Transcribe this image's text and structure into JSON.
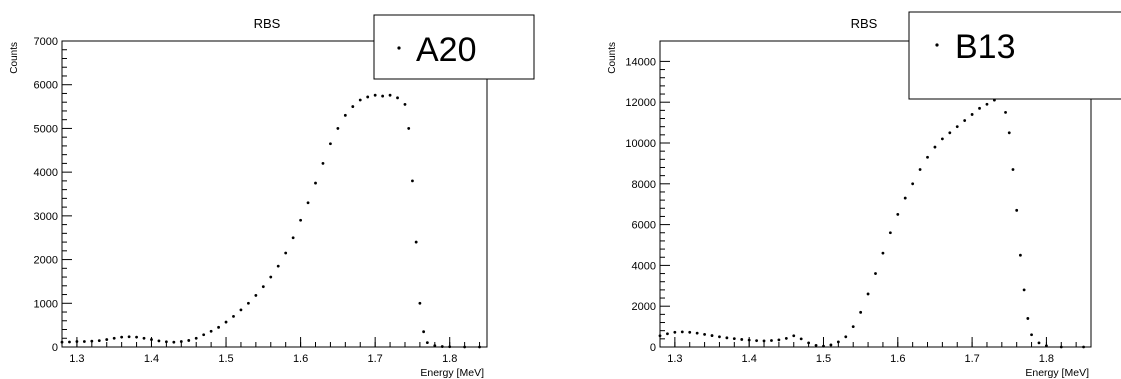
{
  "chart_data": [
    {
      "type": "scatter",
      "title": "RBS",
      "xlabel": "Energy [MeV]",
      "ylabel": "Counts",
      "xlim": [
        1.28,
        1.85
      ],
      "ylim": [
        0,
        7000
      ],
      "xticks": [
        1.3,
        1.4,
        1.5,
        1.6,
        1.7,
        1.8
      ],
      "yticks": [
        0,
        1000,
        2000,
        3000,
        4000,
        5000,
        6000,
        7000
      ],
      "grid": false,
      "legend_position": "top-right",
      "series": [
        {
          "name": "A20",
          "points": [
            [
              1.28,
              110
            ],
            [
              1.29,
              115
            ],
            [
              1.3,
              125
            ],
            [
              1.31,
              125
            ],
            [
              1.32,
              135
            ],
            [
              1.33,
              145
            ],
            [
              1.34,
              170
            ],
            [
              1.35,
              200
            ],
            [
              1.36,
              225
            ],
            [
              1.37,
              235
            ],
            [
              1.38,
              225
            ],
            [
              1.39,
              200
            ],
            [
              1.4,
              170
            ],
            [
              1.41,
              140
            ],
            [
              1.42,
              120
            ],
            [
              1.43,
              110
            ],
            [
              1.44,
              125
            ],
            [
              1.45,
              150
            ],
            [
              1.46,
              200
            ],
            [
              1.47,
              280
            ],
            [
              1.48,
              360
            ],
            [
              1.49,
              450
            ],
            [
              1.5,
              570
            ],
            [
              1.51,
              700
            ],
            [
              1.52,
              850
            ],
            [
              1.53,
              1000
            ],
            [
              1.54,
              1180
            ],
            [
              1.55,
              1380
            ],
            [
              1.56,
              1600
            ],
            [
              1.57,
              1850
            ],
            [
              1.58,
              2150
            ],
            [
              1.59,
              2500
            ],
            [
              1.6,
              2900
            ],
            [
              1.61,
              3300
            ],
            [
              1.62,
              3750
            ],
            [
              1.63,
              4200
            ],
            [
              1.64,
              4650
            ],
            [
              1.65,
              5000
            ],
            [
              1.66,
              5300
            ],
            [
              1.67,
              5500
            ],
            [
              1.68,
              5650
            ],
            [
              1.69,
              5720
            ],
            [
              1.7,
              5760
            ],
            [
              1.71,
              5740
            ],
            [
              1.72,
              5760
            ],
            [
              1.73,
              5700
            ],
            [
              1.74,
              5550
            ],
            [
              1.745,
              5000
            ],
            [
              1.75,
              3800
            ],
            [
              1.755,
              2400
            ],
            [
              1.76,
              1000
            ],
            [
              1.765,
              350
            ],
            [
              1.77,
              100
            ],
            [
              1.78,
              30
            ],
            [
              1.79,
              10
            ],
            [
              1.8,
              5
            ],
            [
              1.82,
              0
            ],
            [
              1.84,
              0
            ]
          ]
        }
      ]
    },
    {
      "type": "scatter",
      "title": "RBS",
      "xlabel": "Energy [MeV]",
      "ylabel": "Counts",
      "xlim": [
        1.28,
        1.86
      ],
      "ylim": [
        0,
        15000
      ],
      "xticks": [
        1.3,
        1.4,
        1.5,
        1.6,
        1.7,
        1.8
      ],
      "yticks": [
        0,
        2000,
        4000,
        6000,
        8000,
        10000,
        12000,
        14000
      ],
      "grid": false,
      "legend_position": "top-right",
      "series": [
        {
          "name": "B13",
          "points": [
            [
              1.28,
              550
            ],
            [
              1.29,
              650
            ],
            [
              1.3,
              720
            ],
            [
              1.31,
              740
            ],
            [
              1.32,
              720
            ],
            [
              1.33,
              680
            ],
            [
              1.34,
              620
            ],
            [
              1.35,
              560
            ],
            [
              1.36,
              500
            ],
            [
              1.37,
              450
            ],
            [
              1.38,
              410
            ],
            [
              1.39,
              370
            ],
            [
              1.4,
              340
            ],
            [
              1.41,
              310
            ],
            [
              1.42,
              300
            ],
            [
              1.43,
              320
            ],
            [
              1.44,
              350
            ],
            [
              1.45,
              420
            ],
            [
              1.46,
              550
            ],
            [
              1.47,
              400
            ],
            [
              1.48,
              200
            ],
            [
              1.49,
              80
            ],
            [
              1.5,
              40
            ],
            [
              1.51,
              100
            ],
            [
              1.52,
              250
            ],
            [
              1.53,
              500
            ],
            [
              1.54,
              1000
            ],
            [
              1.55,
              1700
            ],
            [
              1.56,
              2600
            ],
            [
              1.57,
              3600
            ],
            [
              1.58,
              4600
            ],
            [
              1.59,
              5600
            ],
            [
              1.6,
              6500
            ],
            [
              1.61,
              7300
            ],
            [
              1.62,
              8000
            ],
            [
              1.63,
              8700
            ],
            [
              1.64,
              9300
            ],
            [
              1.65,
              9800
            ],
            [
              1.66,
              10200
            ],
            [
              1.67,
              10500
            ],
            [
              1.68,
              10800
            ],
            [
              1.69,
              11100
            ],
            [
              1.7,
              11400
            ],
            [
              1.71,
              11700
            ],
            [
              1.72,
              11900
            ],
            [
              1.73,
              12100
            ],
            [
              1.74,
              12200
            ],
            [
              1.745,
              11500
            ],
            [
              1.75,
              10500
            ],
            [
              1.755,
              8700
            ],
            [
              1.76,
              6700
            ],
            [
              1.765,
              4500
            ],
            [
              1.77,
              2800
            ],
            [
              1.775,
              1400
            ],
            [
              1.78,
              600
            ],
            [
              1.79,
              200
            ],
            [
              1.8,
              60
            ],
            [
              1.82,
              0
            ],
            [
              1.85,
              0
            ]
          ]
        }
      ]
    }
  ]
}
